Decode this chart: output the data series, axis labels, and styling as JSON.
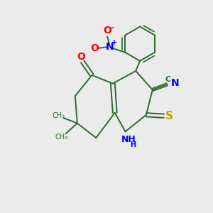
{
  "bg_color": "#ebebeb",
  "bond_color": "#2d6b2d",
  "figsize": [
    3.0,
    3.0
  ],
  "dpi": 100,
  "xlim": [
    0,
    10
  ],
  "ylim": [
    0,
    10
  ]
}
